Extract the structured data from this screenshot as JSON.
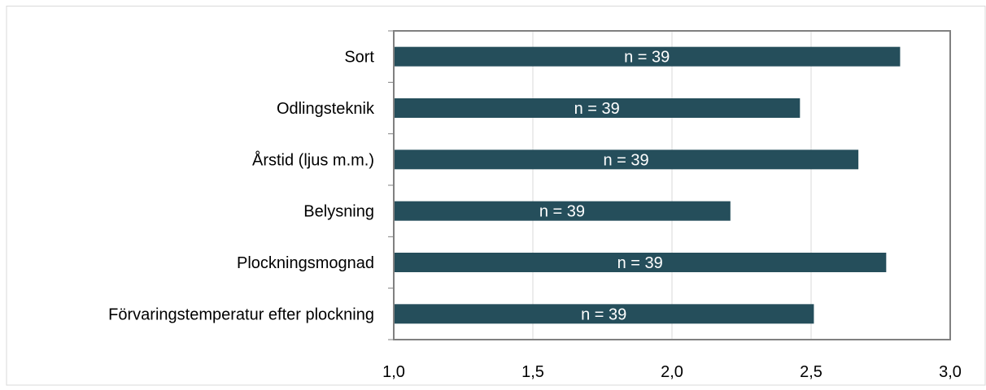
{
  "chart_data": {
    "type": "bar",
    "orientation": "horizontal",
    "categories": [
      "Sort",
      "Odlingsteknik",
      "Årstid (ljus m.m.)",
      "Belysning",
      "Plockningsmognad",
      "Förvaringstemperatur efter plockning"
    ],
    "values": [
      2.82,
      2.46,
      2.67,
      2.21,
      2.77,
      2.51
    ],
    "data_labels": [
      "n = 39",
      "n = 39",
      "n = 39",
      "n = 39",
      "n = 39",
      "n = 39"
    ],
    "xlim": [
      1.0,
      3.0
    ],
    "xticks": [
      1.0,
      1.5,
      2.0,
      2.5,
      3.0
    ],
    "xtick_labels": [
      "1,0",
      "1,5",
      "2,0",
      "2,5",
      "3,0"
    ],
    "title": "",
    "xlabel": "",
    "ylabel": "",
    "grid": true,
    "legend": "none",
    "colors": {
      "bar": "#254e5b",
      "grid": "#d9d9d9",
      "axis": "#808080",
      "label_text": "#ffffff",
      "text": "#000000"
    }
  }
}
